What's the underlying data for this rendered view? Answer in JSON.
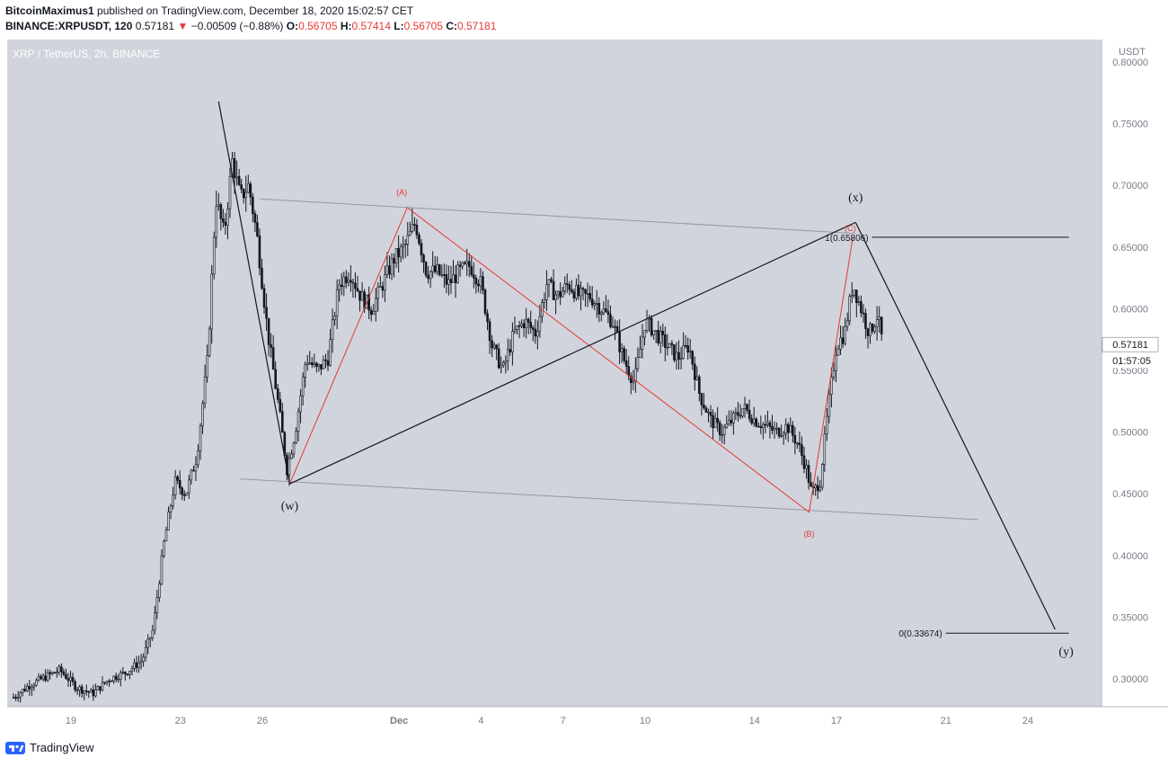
{
  "header": {
    "author": "BitcoinMaximus1",
    "published_text": " published on TradingView.com, December 18, 2020 15:02:57 CET",
    "symbol": "BINANCE:XRPUSDT, 120",
    "last": "0.57181",
    "change_arrow": "▼",
    "change": "−0.00509 (−0.88%)",
    "o_label": "O:",
    "o_value": "0.56705",
    "h_label": "H:",
    "h_value": "0.57414",
    "l_label": "L:",
    "l_value": "0.56705",
    "c_label": "C:",
    "c_value": "0.57181"
  },
  "colors": {
    "plot_bg": "#d1d4dc",
    "axis_bg": "#ffffff",
    "candle": "#131722",
    "wave": "#e53935",
    "trend": "#131722",
    "channel": "#9598a1",
    "price_tag_bg": "#ffffff"
  },
  "chart_data": {
    "type": "candlestick",
    "title": "XRP / TetherUS, 2h, BINANCE",
    "currency": "USDT",
    "ylim": [
      0.28,
      0.8
    ],
    "y_ticks": [
      "0.80000",
      "0.75000",
      "0.70000",
      "0.65000",
      "0.60000",
      "0.55000",
      "0.50000",
      "0.45000",
      "0.40000",
      "0.35000",
      "0.30000"
    ],
    "y_tick_values": [
      0.8,
      0.75,
      0.7,
      0.65,
      0.6,
      0.55,
      0.5,
      0.45,
      0.4,
      0.35,
      0.3
    ],
    "x_ticks": [
      "19",
      "23",
      "26",
      "Dec",
      "4",
      "7",
      "10",
      "14",
      "17",
      "21",
      "24"
    ],
    "x_tick_days": [
      19,
      23,
      26,
      31,
      34,
      37,
      40,
      44,
      47,
      51,
      54
    ],
    "x_range_days": [
      16.9,
      55.8
    ],
    "price_path": [
      [
        16.9,
        0.285
      ],
      [
        17.5,
        0.295
      ],
      [
        18.2,
        0.303
      ],
      [
        18.6,
        0.307
      ],
      [
        19.2,
        0.293
      ],
      [
        19.8,
        0.288
      ],
      [
        20.4,
        0.3
      ],
      [
        21.0,
        0.305
      ],
      [
        21.6,
        0.315
      ],
      [
        22.0,
        0.34
      ],
      [
        22.4,
        0.41
      ],
      [
        22.8,
        0.46
      ],
      [
        23.2,
        0.45
      ],
      [
        23.6,
        0.48
      ],
      [
        24.0,
        0.56
      ],
      [
        24.3,
        0.69
      ],
      [
        24.6,
        0.66
      ],
      [
        24.9,
        0.72
      ],
      [
        25.2,
        0.69
      ],
      [
        25.5,
        0.7
      ],
      [
        25.8,
        0.66
      ],
      [
        26.2,
        0.58
      ],
      [
        26.6,
        0.52
      ],
      [
        26.9,
        0.47
      ],
      [
        27.2,
        0.5
      ],
      [
        27.6,
        0.56
      ],
      [
        28.0,
        0.55
      ],
      [
        28.4,
        0.56
      ],
      [
        28.8,
        0.62
      ],
      [
        29.2,
        0.63
      ],
      [
        29.6,
        0.61
      ],
      [
        30.0,
        0.6
      ],
      [
        30.4,
        0.62
      ],
      [
        30.8,
        0.64
      ],
      [
        31.2,
        0.65
      ],
      [
        31.6,
        0.67
      ],
      [
        32.0,
        0.63
      ],
      [
        32.4,
        0.63
      ],
      [
        32.8,
        0.62
      ],
      [
        33.2,
        0.63
      ],
      [
        33.6,
        0.635
      ],
      [
        34.0,
        0.62
      ],
      [
        34.4,
        0.57
      ],
      [
        34.8,
        0.55
      ],
      [
        35.2,
        0.58
      ],
      [
        35.6,
        0.59
      ],
      [
        36.0,
        0.58
      ],
      [
        36.4,
        0.62
      ],
      [
        36.8,
        0.61
      ],
      [
        37.2,
        0.62
      ],
      [
        37.6,
        0.61
      ],
      [
        38.0,
        0.61
      ],
      [
        38.4,
        0.6
      ],
      [
        38.8,
        0.59
      ],
      [
        39.2,
        0.56
      ],
      [
        39.6,
        0.54
      ],
      [
        40.0,
        0.59
      ],
      [
        40.4,
        0.58
      ],
      [
        40.8,
        0.57
      ],
      [
        41.2,
        0.56
      ],
      [
        41.6,
        0.57
      ],
      [
        42.0,
        0.53
      ],
      [
        42.4,
        0.51
      ],
      [
        42.8,
        0.5
      ],
      [
        43.2,
        0.51
      ],
      [
        43.6,
        0.52
      ],
      [
        44.0,
        0.51
      ],
      [
        44.4,
        0.505
      ],
      [
        44.8,
        0.5
      ],
      [
        45.2,
        0.505
      ],
      [
        45.6,
        0.49
      ],
      [
        45.9,
        0.47
      ],
      [
        46.1,
        0.45
      ],
      [
        46.4,
        0.46
      ],
      [
        46.7,
        0.52
      ],
      [
        47.0,
        0.57
      ],
      [
        47.3,
        0.58
      ],
      [
        47.6,
        0.62
      ],
      [
        47.9,
        0.6
      ],
      [
        48.2,
        0.58
      ],
      [
        48.5,
        0.595
      ],
      [
        48.7,
        0.571
      ]
    ],
    "channel_upper": [
      [
        25.9,
        0.689
      ],
      [
        47.7,
        0.661
      ]
    ],
    "channel_lower": [
      [
        25.2,
        0.462
      ],
      [
        52.2,
        0.429
      ]
    ],
    "wave_abc": [
      [
        27.0,
        0.458
      ],
      [
        31.3,
        0.682
      ],
      [
        46.0,
        0.435
      ],
      [
        47.6,
        0.658
      ]
    ],
    "trend_lines": [
      [
        [
          24.4,
          0.768
        ],
        [
          27.0,
          0.458
        ]
      ],
      [
        [
          27.0,
          0.458
        ],
        [
          47.7,
          0.67
        ]
      ],
      [
        [
          47.7,
          0.67
        ],
        [
          55.0,
          0.34
        ]
      ]
    ],
    "fib_levels": [
      {
        "label": "1(0.65806)",
        "value": 0.658,
        "from_day": 48.3,
        "to_day": 55.5
      },
      {
        "label": "0(0.33674)",
        "value": 0.337,
        "from_day": 51.0,
        "to_day": 55.5
      }
    ],
    "wave_labels": [
      {
        "text": "(A)",
        "day": 31.1,
        "value": 0.695,
        "color": "wave"
      },
      {
        "text": "(B)",
        "day": 46.0,
        "value": 0.418,
        "color": "wave"
      },
      {
        "text": "(C)",
        "day": 47.5,
        "value": 0.666,
        "color": "wave"
      },
      {
        "text": "(w)",
        "day": 27.0,
        "value": 0.44,
        "color": "trend"
      },
      {
        "text": "(x)",
        "day": 47.7,
        "value": 0.69,
        "color": "trend"
      },
      {
        "text": "(y)",
        "day": 55.4,
        "value": 0.322,
        "color": "trend"
      }
    ],
    "last_price_label": "0.57181",
    "countdown_label": "01:57:05"
  },
  "footer": {
    "brand": "TradingView"
  }
}
